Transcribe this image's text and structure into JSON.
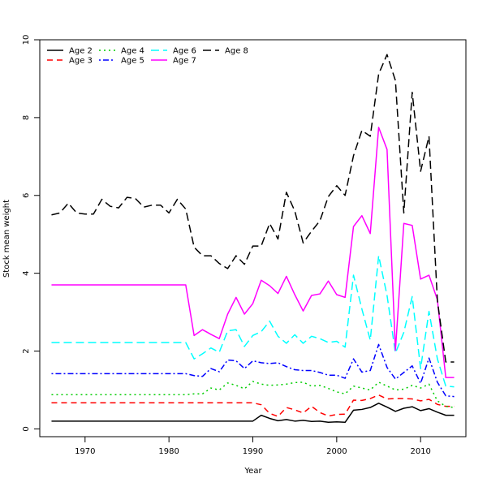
{
  "chart_data": {
    "type": "line",
    "title": "",
    "xlabel": "Year",
    "ylabel": "Stock mean weight",
    "xlim": [
      1964.6,
      2015.4
    ],
    "ylim": [
      -0.2,
      10.0
    ],
    "xticks": [
      1970,
      1980,
      1990,
      2000,
      2010
    ],
    "yticks": [
      0,
      2,
      4,
      6,
      8,
      10
    ],
    "grid": false,
    "legend": {
      "placement": "top-left",
      "columns": 4
    },
    "x": [
      1966,
      1967,
      1968,
      1969,
      1970,
      1971,
      1972,
      1973,
      1974,
      1975,
      1976,
      1977,
      1978,
      1979,
      1980,
      1981,
      1982,
      1983,
      1984,
      1985,
      1986,
      1987,
      1988,
      1989,
      1990,
      1991,
      1992,
      1993,
      1994,
      1995,
      1996,
      1997,
      1998,
      1999,
      2000,
      2001,
      2002,
      2003,
      2004,
      2005,
      2006,
      2007,
      2008,
      2009,
      2010,
      2011,
      2012,
      2013,
      2014
    ],
    "series": [
      {
        "name": "Age 2",
        "color": "#000000",
        "dash": "solid",
        "values": [
          0.2,
          0.2,
          0.2,
          0.2,
          0.2,
          0.2,
          0.2,
          0.2,
          0.2,
          0.2,
          0.2,
          0.2,
          0.2,
          0.2,
          0.2,
          0.2,
          0.2,
          0.2,
          0.2,
          0.2,
          0.2,
          0.2,
          0.2,
          0.2,
          0.2,
          0.35,
          0.27,
          0.21,
          0.24,
          0.2,
          0.22,
          0.19,
          0.2,
          0.17,
          0.18,
          0.17,
          0.48,
          0.5,
          0.55,
          0.66,
          0.56,
          0.45,
          0.53,
          0.57,
          0.47,
          0.52,
          0.43,
          0.35,
          0.35
        ]
      },
      {
        "name": "Age 3",
        "color": "#ff0000",
        "dash": "long",
        "values": [
          0.67,
          0.67,
          0.67,
          0.67,
          0.67,
          0.67,
          0.67,
          0.67,
          0.67,
          0.67,
          0.67,
          0.67,
          0.67,
          0.67,
          0.67,
          0.67,
          0.67,
          0.67,
          0.67,
          0.67,
          0.67,
          0.67,
          0.67,
          0.67,
          0.67,
          0.62,
          0.4,
          0.32,
          0.55,
          0.49,
          0.41,
          0.58,
          0.42,
          0.33,
          0.37,
          0.38,
          0.74,
          0.73,
          0.78,
          0.87,
          0.77,
          0.78,
          0.78,
          0.77,
          0.72,
          0.76,
          0.63,
          0.58,
          0.58
        ]
      },
      {
        "name": "Age 4",
        "color": "#00cd00",
        "dash": "dot",
        "values": [
          0.88,
          0.88,
          0.88,
          0.88,
          0.88,
          0.88,
          0.88,
          0.88,
          0.88,
          0.88,
          0.88,
          0.88,
          0.88,
          0.88,
          0.88,
          0.88,
          0.88,
          0.9,
          0.9,
          1.05,
          1.0,
          1.18,
          1.12,
          1.03,
          1.22,
          1.15,
          1.12,
          1.13,
          1.15,
          1.19,
          1.2,
          1.1,
          1.12,
          1.04,
          0.95,
          0.9,
          1.1,
          1.05,
          1.0,
          1.2,
          1.1,
          1.0,
          1.02,
          1.12,
          1.05,
          1.15,
          0.72,
          0.58,
          0.55
        ]
      },
      {
        "name": "Age 5",
        "color": "#0000ff",
        "dash": "dotdash",
        "values": [
          1.42,
          1.42,
          1.42,
          1.42,
          1.42,
          1.42,
          1.42,
          1.42,
          1.42,
          1.42,
          1.42,
          1.42,
          1.42,
          1.42,
          1.42,
          1.42,
          1.42,
          1.37,
          1.35,
          1.55,
          1.47,
          1.77,
          1.75,
          1.55,
          1.75,
          1.7,
          1.68,
          1.7,
          1.6,
          1.52,
          1.5,
          1.5,
          1.45,
          1.38,
          1.38,
          1.3,
          1.8,
          1.46,
          1.5,
          2.17,
          1.58,
          1.28,
          1.45,
          1.62,
          1.17,
          1.82,
          1.2,
          0.85,
          0.83
        ]
      },
      {
        "name": "Age 6",
        "color": "#00ffff",
        "dash": "longdash",
        "values": [
          2.22,
          2.22,
          2.22,
          2.22,
          2.22,
          2.22,
          2.22,
          2.22,
          2.22,
          2.22,
          2.22,
          2.22,
          2.22,
          2.22,
          2.22,
          2.22,
          2.22,
          1.8,
          1.93,
          2.08,
          1.97,
          2.52,
          2.55,
          2.12,
          2.4,
          2.5,
          2.77,
          2.38,
          2.2,
          2.42,
          2.2,
          2.38,
          2.32,
          2.22,
          2.25,
          2.1,
          3.95,
          3.08,
          2.28,
          4.45,
          3.43,
          1.95,
          2.48,
          3.4,
          1.55,
          3.02,
          1.8,
          1.1,
          1.08
        ]
      },
      {
        "name": "Age 7",
        "color": "#ff00ff",
        "dash": "solid",
        "values": [
          3.7,
          3.7,
          3.7,
          3.7,
          3.7,
          3.7,
          3.7,
          3.7,
          3.7,
          3.7,
          3.7,
          3.7,
          3.7,
          3.7,
          3.7,
          3.7,
          3.7,
          2.4,
          2.55,
          2.43,
          2.32,
          2.95,
          3.38,
          2.95,
          3.22,
          3.82,
          3.68,
          3.48,
          3.92,
          3.45,
          3.03,
          3.43,
          3.47,
          3.8,
          3.45,
          3.38,
          5.2,
          5.48,
          5.02,
          7.75,
          7.18,
          2.02,
          5.28,
          5.23,
          3.85,
          3.95,
          3.32,
          1.32,
          1.32
        ]
      },
      {
        "name": "Age 8",
        "color": "#000000",
        "dash": "longdash",
        "values": [
          5.5,
          5.55,
          5.8,
          5.55,
          5.52,
          5.52,
          5.9,
          5.72,
          5.68,
          5.95,
          5.92,
          5.7,
          5.75,
          5.75,
          5.55,
          5.9,
          5.65,
          4.67,
          4.45,
          4.45,
          4.25,
          4.12,
          4.45,
          4.23,
          4.7,
          4.7,
          5.28,
          4.88,
          6.08,
          5.6,
          4.78,
          5.08,
          5.35,
          5.97,
          6.25,
          6.0,
          7.02,
          7.67,
          7.52,
          9.12,
          9.62,
          8.95,
          5.55,
          8.65,
          6.62,
          7.52,
          3.3,
          1.72,
          1.72
        ]
      }
    ]
  }
}
